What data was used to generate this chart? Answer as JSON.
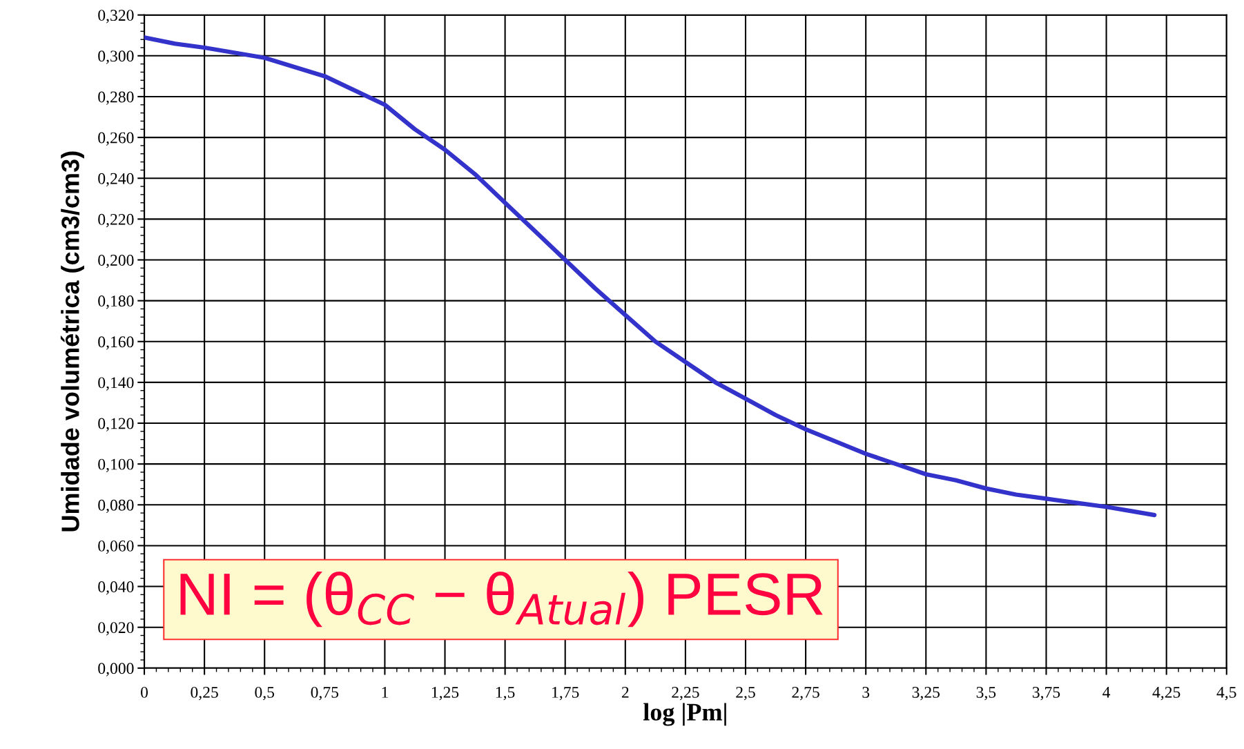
{
  "chart_data": {
    "type": "line",
    "xlabel": "log |Pm|",
    "ylabel": "Umidade volumétrica (cm3/cm3)",
    "x": [
      0,
      0.125,
      0.25,
      0.5,
      0.75,
      1.0,
      1.125,
      1.25,
      1.375,
      1.5,
      1.625,
      1.75,
      1.875,
      2.0,
      2.125,
      2.25,
      2.375,
      2.5,
      2.625,
      2.75,
      2.875,
      3.0,
      3.125,
      3.25,
      3.375,
      3.5,
      3.625,
      3.75,
      3.875,
      4.0,
      4.1,
      4.2
    ],
    "series": [
      {
        "color": "#3333cc",
        "values": [
          0.309,
          0.306,
          0.304,
          0.299,
          0.29,
          0.276,
          0.264,
          0.254,
          0.242,
          0.228,
          0.214,
          0.2,
          0.186,
          0.173,
          0.16,
          0.15,
          0.14,
          0.132,
          0.124,
          0.117,
          0.111,
          0.105,
          0.1,
          0.095,
          0.092,
          0.088,
          0.085,
          0.083,
          0.081,
          0.079,
          0.077,
          0.075
        ]
      }
    ],
    "xlim": [
      0,
      4.5
    ],
    "ylim": [
      0,
      0.32
    ],
    "xticks": [
      0,
      {
        "value": 0.25,
        "label": "0,25"
      },
      {
        "value": 0.5,
        "label": "0,5"
      },
      {
        "value": 0.75,
        "label": "0,75"
      },
      1,
      {
        "value": 1.25,
        "label": "1,25"
      },
      {
        "value": 1.5,
        "label": "1,5"
      },
      {
        "value": 1.75,
        "label": "1,75"
      },
      2,
      {
        "value": 2.25,
        "label": "2,25"
      },
      {
        "value": 2.5,
        "label": "2,5"
      },
      {
        "value": 2.75,
        "label": "2,75"
      },
      3,
      {
        "value": 3.25,
        "label": "3,25"
      },
      {
        "value": 3.5,
        "label": "3,5"
      },
      {
        "value": 3.75,
        "label": "3,75"
      },
      4,
      {
        "value": 4.25,
        "label": "4,25"
      },
      {
        "value": 4.5,
        "label": "4,5"
      }
    ],
    "yticks": [
      {
        "value": 0,
        "label": "0,000"
      },
      {
        "value": 0.02,
        "label": "0,020"
      },
      {
        "value": 0.04,
        "label": "0,040"
      },
      {
        "value": 0.06,
        "label": "0,060"
      },
      {
        "value": 0.08,
        "label": "0,080"
      },
      {
        "value": 0.1,
        "label": "0,100"
      },
      {
        "value": 0.12,
        "label": "0,120"
      },
      {
        "value": 0.14,
        "label": "0,140"
      },
      {
        "value": 0.16,
        "label": "0,160"
      },
      {
        "value": 0.18,
        "label": "0,180"
      },
      {
        "value": 0.2,
        "label": "0,200"
      },
      {
        "value": 0.22,
        "label": "0,220"
      },
      {
        "value": 0.24,
        "label": "0,240"
      },
      {
        "value": 0.26,
        "label": "0,260"
      },
      {
        "value": 0.28,
        "label": "0,280"
      },
      {
        "value": 0.3,
        "label": "0,300"
      },
      {
        "value": 0.32,
        "label": "0,320"
      }
    ],
    "grid": true,
    "marker": "none",
    "line_style": "solid",
    "annotations": [
      "NI = (θ$_{CC}$ − θ$_{Atual}$) PESR"
    ]
  }
}
